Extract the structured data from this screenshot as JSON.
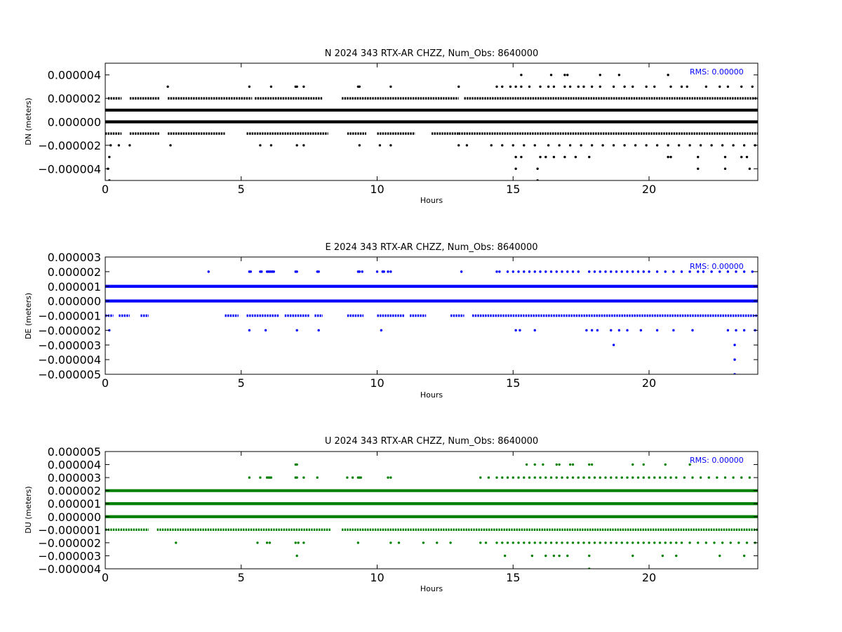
{
  "chart_data": [
    {
      "type": "scatter",
      "title": "N 2024 343 RTX-AR  CHZZ, Num_Obs: 8640000",
      "xlabel": "Hours",
      "ylabel": "DN (meters)",
      "xlim": [
        0,
        24
      ],
      "ylim": [
        -5e-06,
        5e-06
      ],
      "xticks": [
        0,
        5,
        10,
        15,
        20
      ],
      "xtick_labels": [
        "0",
        "5",
        "10",
        "15",
        "20"
      ],
      "yticks": [
        -4e-06,
        -2e-06,
        0,
        2e-06,
        4e-06
      ],
      "ytick_labels": [
        "−0.000004",
        "−0.000002",
        "0.000000",
        "0.000002",
        "0.000004"
      ],
      "color": "#000000",
      "rms_label": "RMS:  0.00000",
      "rms_color": "#0000ff",
      "series": [
        {
          "y": 1e-06,
          "coverage": "continuous"
        },
        {
          "y": 0.0,
          "coverage": "continuous"
        },
        {
          "y": 2e-06,
          "coverage": [
            [
              0.1,
              0.6
            ],
            [
              0.9,
              2.0
            ],
            [
              2.3,
              5.4
            ],
            [
              5.5,
              8.0
            ],
            [
              8.7,
              13.0
            ],
            [
              13.2,
              24.0
            ]
          ]
        },
        {
          "y": -1e-06,
          "coverage": [
            [
              0.0,
              0.6
            ],
            [
              0.9,
              2.0
            ],
            [
              2.3,
              4.4
            ],
            [
              5.2,
              8.2
            ],
            [
              8.9,
              9.6
            ],
            [
              10.0,
              11.4
            ],
            [
              12.0,
              13.0
            ],
            [
              13.0,
              24.0
            ]
          ]
        },
        {
          "y": 3e-06,
          "points": [
            2.3,
            5.3,
            6.1,
            7.0,
            7.05,
            7.3,
            9.3,
            9.35,
            10.5,
            13.0,
            14.4,
            14.6,
            14.9,
            15.1,
            15.3,
            15.6,
            16.0,
            16.3,
            16.5,
            16.9,
            17.1,
            17.4,
            17.6,
            17.9,
            18.2,
            18.7,
            19.1,
            19.4,
            19.9,
            20.2,
            20.8,
            21.2,
            21.4,
            22.1,
            22.6,
            22.9,
            23.4,
            23.8
          ]
        },
        {
          "y": -2e-06,
          "points": [
            0.2,
            0.5,
            0.9,
            2.4,
            5.7,
            6.1,
            7.05,
            7.3,
            9.35,
            10.1,
            10.5,
            13.0,
            13.3,
            14.2,
            14.6,
            15.0,
            15.4,
            15.8,
            16.3,
            16.7,
            17.1,
            17.5,
            17.9,
            18.3,
            18.7,
            19.1,
            19.5,
            19.9,
            20.3,
            20.7,
            21.1,
            21.5,
            21.9,
            22.3,
            22.7,
            23.1,
            23.5,
            23.9
          ]
        },
        {
          "y": 4e-06,
          "points": [
            15.3,
            16.4,
            16.9,
            17.0,
            18.2,
            18.9,
            20.7
          ]
        },
        {
          "y": -3e-06,
          "points": [
            0.15,
            15.1,
            15.3,
            16.0,
            16.2,
            16.5,
            16.9,
            17.3,
            17.8,
            20.7,
            20.8,
            21.8,
            22.8,
            23.4,
            23.6
          ]
        },
        {
          "y": -4e-06,
          "points": [
            0.1,
            15.1,
            15.9,
            21.8,
            22.8,
            23.7
          ]
        },
        {
          "y": -5e-06,
          "points": [
            0.15,
            15.9
          ]
        }
      ]
    },
    {
      "type": "scatter",
      "title": "E 2024 343 RTX-AR  CHZZ, Num_Obs: 8640000",
      "xlabel": "Hours",
      "ylabel": "DE (meters)",
      "xlim": [
        0,
        24
      ],
      "ylim": [
        -5e-06,
        3e-06
      ],
      "xticks": [
        0,
        5,
        10,
        15,
        20
      ],
      "xtick_labels": [
        "0",
        "5",
        "10",
        "15",
        "20"
      ],
      "yticks": [
        -5e-06,
        -4e-06,
        -3e-06,
        -2e-06,
        -1e-06,
        0,
        1e-06,
        2e-06,
        3e-06
      ],
      "ytick_labels": [
        "−0.000005",
        "−0.000004",
        "−0.000003",
        "−0.000002",
        "−0.000001",
        "0.000000",
        "0.000001",
        "0.000002",
        "0.000003"
      ],
      "color": "#0000ff",
      "rms_label": "RMS:  0.00000",
      "rms_color": "#0000ff",
      "series": [
        {
          "y": 1e-06,
          "coverage": "continuous"
        },
        {
          "y": 0.0,
          "coverage": "continuous"
        },
        {
          "y": 2e-06,
          "points": [
            3.8,
            5.3,
            5.35,
            5.7,
            5.75,
            5.95,
            6.0,
            6.05,
            6.1,
            6.15,
            6.2,
            7.0,
            7.05,
            7.8,
            7.85,
            9.3,
            9.35,
            9.45,
            10.0,
            10.2,
            10.25,
            10.4,
            10.5,
            13.1,
            14.4,
            14.5,
            14.8,
            15.0,
            15.2,
            15.4,
            15.6,
            15.8,
            16.0,
            16.2,
            16.4,
            16.6,
            16.8,
            17.0,
            17.2,
            17.4,
            17.8,
            18.0,
            18.2,
            18.4,
            18.6,
            18.8,
            19.0,
            19.2,
            19.4,
            19.6,
            19.8,
            20.0,
            20.3,
            20.6,
            20.9,
            21.2,
            21.5,
            21.8,
            22.0,
            22.3,
            22.6,
            22.9,
            23.2,
            23.5,
            23.8
          ]
        },
        {
          "y": -1e-06,
          "coverage": [
            [
              0.0,
              0.3
            ],
            [
              0.5,
              0.9
            ],
            [
              1.3,
              1.6
            ],
            [
              4.4,
              4.9
            ],
            [
              5.2,
              6.4
            ],
            [
              6.6,
              7.5
            ],
            [
              7.7,
              8.0
            ],
            [
              8.9,
              9.5
            ],
            [
              10.0,
              11.0
            ],
            [
              11.2,
              11.8
            ],
            [
              12.7,
              13.2
            ],
            [
              13.5,
              24.0
            ]
          ]
        },
        {
          "y": -2e-06,
          "points": [
            0.15,
            5.3,
            5.9,
            7.05,
            7.85,
            10.15,
            15.1,
            15.25,
            15.8,
            17.7,
            17.9,
            18.1,
            18.6,
            18.9,
            19.2,
            19.7,
            20.3,
            20.9,
            21.6,
            22.9,
            23.2,
            23.5,
            23.9
          ]
        },
        {
          "y": -3e-06,
          "points": [
            18.7,
            23.15
          ]
        },
        {
          "y": -4e-06,
          "points": [
            23.15
          ]
        },
        {
          "y": -5e-06,
          "points": [
            23.15
          ]
        }
      ]
    },
    {
      "type": "scatter",
      "title": "U 2024 343 RTX-AR  CHZZ, Num_Obs: 8640000",
      "xlabel": "Hours",
      "ylabel": "DU (meters)",
      "xlim": [
        0,
        24
      ],
      "ylim": [
        -4e-06,
        5e-06
      ],
      "xticks": [
        0,
        5,
        10,
        15,
        20
      ],
      "xtick_labels": [
        "0",
        "5",
        "10",
        "15",
        "20"
      ],
      "yticks": [
        -4e-06,
        -3e-06,
        -2e-06,
        -1e-06,
        0,
        1e-06,
        2e-06,
        3e-06,
        4e-06,
        5e-06
      ],
      "ytick_labels": [
        "−0.000004",
        "−0.000003",
        "−0.000002",
        "−0.000001",
        "0.000000",
        "0.000001",
        "0.000002",
        "0.000003",
        "0.000004",
        "0.000005"
      ],
      "color": "#008000",
      "rms_label": "RMS:  0.00000",
      "rms_color": "#0000ff",
      "series": [
        {
          "y": 2e-06,
          "coverage": "continuous"
        },
        {
          "y": 1e-06,
          "coverage": "continuous"
        },
        {
          "y": 0.0,
          "coverage": "continuous"
        },
        {
          "y": -1e-06,
          "coverage": [
            [
              0.0,
              1.6
            ],
            [
              1.9,
              8.3
            ],
            [
              8.7,
              24.0
            ]
          ]
        },
        {
          "y": 3e-06,
          "points": [
            5.3,
            5.7,
            5.95,
            6.0,
            6.05,
            6.1,
            7.0,
            7.05,
            7.3,
            7.8,
            8.9,
            9.1,
            9.3,
            9.35,
            9.4,
            10.4,
            10.5,
            13.8,
            14.1,
            14.4,
            14.6,
            14.8,
            15.0,
            15.2,
            15.4,
            15.6,
            15.8,
            16.0,
            16.2,
            16.4,
            16.6,
            16.8,
            17.0,
            17.2,
            17.4,
            17.6,
            17.8,
            18.0,
            18.2,
            18.4,
            18.6,
            18.8,
            19.0,
            19.2,
            19.4,
            19.6,
            19.8,
            20.0,
            20.2,
            20.4,
            20.6,
            20.8,
            21.0,
            21.3,
            21.6,
            21.9,
            22.2,
            22.5,
            22.8,
            23.1,
            23.4,
            23.7
          ]
        },
        {
          "y": -2e-06,
          "points": [
            2.6,
            5.6,
            5.95,
            6.05,
            7.0,
            7.1,
            7.3,
            9.3,
            10.5,
            10.8,
            11.7,
            12.2,
            12.7,
            13.8,
            14.0,
            14.4,
            14.6,
            14.8,
            15.0,
            15.2,
            15.4,
            15.6,
            15.8,
            16.0,
            16.2,
            16.4,
            16.6,
            16.8,
            17.0,
            17.2,
            17.4,
            17.6,
            17.8,
            18.0,
            18.2,
            18.4,
            18.6,
            18.8,
            19.0,
            19.2,
            19.4,
            19.6,
            19.8,
            20.0,
            20.2,
            20.4,
            20.6,
            20.8,
            21.0,
            21.2,
            21.5,
            21.8,
            22.1,
            22.4,
            22.7,
            23.0,
            23.3,
            23.6,
            23.9
          ]
        },
        {
          "y": 4e-06,
          "points": [
            7.0,
            7.05,
            15.5,
            15.8,
            16.1,
            16.6,
            16.7,
            17.1,
            17.2,
            17.8,
            17.9,
            19.4,
            19.8,
            20.6,
            21.5
          ]
        },
        {
          "y": -3e-06,
          "points": [
            7.05,
            14.7,
            15.7,
            16.2,
            16.5,
            16.7,
            17.0,
            17.8,
            19.4,
            20.5,
            21.0,
            22.6,
            23.5
          ]
        },
        {
          "y": -4e-06,
          "points": [
            17.8
          ]
        }
      ]
    }
  ]
}
